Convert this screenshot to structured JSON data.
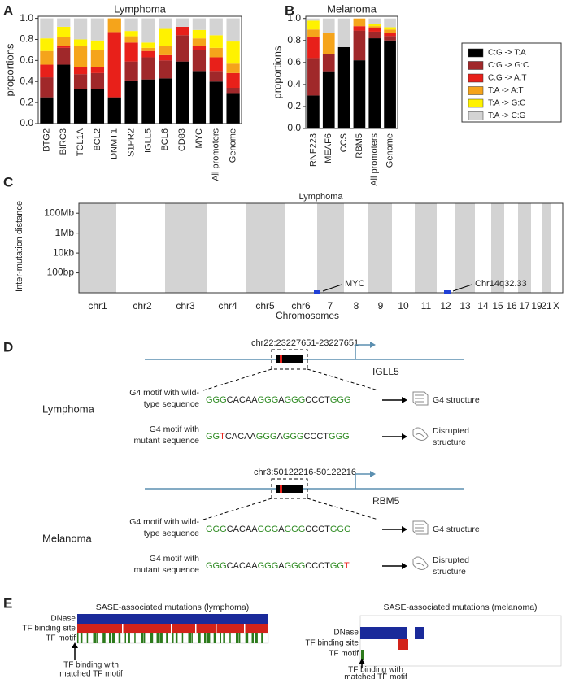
{
  "panel_a": {
    "label": "A",
    "chart_data": {
      "type": "stacked_bar",
      "title": "Lymphoma",
      "y_label": "proportions",
      "categories": [
        "BTG2",
        "BIRC3",
        "TCL1A",
        "BCL2",
        "DNMT1",
        "S1PR2",
        "IGLL5",
        "BCL6",
        "CD83",
        "MYC",
        "All promoters",
        "Genome"
      ],
      "series": [
        {
          "name": "C:G -> T:A",
          "color": "#000000",
          "values": [
            0.25,
            0.56,
            0.33,
            0.33,
            0.25,
            0.41,
            0.42,
            0.43,
            0.59,
            0.5,
            0.4,
            0.29
          ]
        },
        {
          "name": "C:G -> G:C",
          "color": "#a0282a",
          "values": [
            0.19,
            0.16,
            0.14,
            0.15,
            0.0,
            0.18,
            0.21,
            0.17,
            0.25,
            0.2,
            0.1,
            0.05
          ]
        },
        {
          "name": "C:G -> A:T",
          "color": "#e8201a",
          "values": [
            0.12,
            0.02,
            0.07,
            0.06,
            0.62,
            0.18,
            0.06,
            0.05,
            0.08,
            0.04,
            0.13,
            0.14
          ]
        },
        {
          "name": "T:A -> A:T",
          "color": "#f5a41b",
          "values": [
            0.13,
            0.08,
            0.2,
            0.16,
            0.13,
            0.06,
            0.03,
            0.09,
            0.0,
            0.07,
            0.09,
            0.09
          ]
        },
        {
          "name": "T:A -> G:C",
          "color": "#fff200",
          "values": [
            0.12,
            0.1,
            0.06,
            0.09,
            0.0,
            0.05,
            0.05,
            0.16,
            0.0,
            0.08,
            0.12,
            0.21
          ]
        },
        {
          "name": "T:A -> C:G",
          "color": "#d3d3d3",
          "values": [
            0.19,
            0.08,
            0.2,
            0.21,
            0.0,
            0.12,
            0.23,
            0.1,
            0.08,
            0.11,
            0.16,
            0.22
          ]
        }
      ],
      "ylim": [
        0,
        1.02
      ],
      "yticks": [
        {
          "value": 0,
          "label": "0.0"
        },
        {
          "value": 0.2,
          "label": "0.2"
        },
        {
          "value": 0.4,
          "label": "0.4"
        },
        {
          "value": 0.6,
          "label": "0.6"
        },
        {
          "value": 0.8,
          "label": "0.8"
        },
        {
          "value": 1,
          "label": "1.0"
        }
      ]
    }
  },
  "panel_b": {
    "label": "B",
    "chart_data": {
      "type": "stacked_bar",
      "title": "Melanoma",
      "y_label": "proportions",
      "categories": [
        "RNF223",
        "MEAF6",
        "CCS",
        "RBM5",
        "All promoters",
        "Genome"
      ],
      "series": [
        {
          "name": "C:G -> T:A",
          "color": "#000000",
          "values": [
            0.3,
            0.52,
            0.74,
            0.62,
            0.82,
            0.8
          ]
        },
        {
          "name": "C:G -> G:C",
          "color": "#a0282a",
          "values": [
            0.34,
            0.16,
            0.0,
            0.27,
            0.06,
            0.04
          ]
        },
        {
          "name": "C:G -> A:T",
          "color": "#e8201a",
          "values": [
            0.19,
            0.0,
            0.0,
            0.04,
            0.03,
            0.03
          ]
        },
        {
          "name": "T:A -> A:T",
          "color": "#f5a41b",
          "values": [
            0.07,
            0.19,
            0.0,
            0.07,
            0.02,
            0.03
          ]
        },
        {
          "name": "T:A -> G:C",
          "color": "#fff200",
          "values": [
            0.08,
            0.0,
            0.0,
            0.0,
            0.02,
            0.02
          ]
        },
        {
          "name": "T:A -> C:G",
          "color": "#d3d3d3",
          "values": [
            0.02,
            0.13,
            0.26,
            0.0,
            0.05,
            0.08
          ]
        }
      ],
      "ylim": [
        0,
        1.02
      ],
      "yticks": [
        {
          "value": 0,
          "label": "0.0"
        },
        {
          "value": 0.2,
          "label": "0.2"
        },
        {
          "value": 0.4,
          "label": "0.4"
        },
        {
          "value": 0.6,
          "label": "0.6"
        },
        {
          "value": 0.8,
          "label": "0.8"
        },
        {
          "value": 1,
          "label": "1.0"
        }
      ]
    }
  },
  "panel_c": {
    "label": "C",
    "chart_data": {
      "type": "rainfall",
      "title": "Lymphoma",
      "y_label": "Inter-mutation distance",
      "x_label": "Chromosomes",
      "log_y": true,
      "ylim": [
        1,
        1000000000
      ],
      "yticks": [
        {
          "value": 100000000,
          "label": "100Mb"
        },
        {
          "value": 1000000,
          "label": "1Mb"
        },
        {
          "value": 10000,
          "label": "10kb"
        },
        {
          "value": 100,
          "label": "100bp"
        }
      ],
      "categories": [
        "chr1",
        "chr2",
        "chr3",
        "chr4",
        "chr5",
        "chr6",
        "7",
        "8",
        "9",
        "10",
        "11",
        "12",
        "13",
        "14",
        "15",
        "16",
        "17",
        "19",
        "21",
        "X"
      ],
      "annotations": [
        "MYC",
        "Chr14q32.33"
      ]
    }
  },
  "panel_d": {
    "label": "D",
    "lymphoma": {
      "name": "Lymphoma",
      "locus": "chr22:23227651-23227651",
      "gene": "IGLL5",
      "wild": {
        "label": [
          "G4 motif with wild-",
          "type sequence"
        ],
        "result": [
          "G4 structure"
        ],
        "sequence": [
          {
            "text": "GGG",
            "color": "#2e8b22"
          },
          {
            "text": "CACAA",
            "color": "#222222"
          },
          {
            "text": "GGG",
            "color": "#2e8b22"
          },
          {
            "text": "A",
            "color": "#222222"
          },
          {
            "text": "GGG",
            "color": "#2e8b22"
          },
          {
            "text": "CCCT",
            "color": "#222222"
          },
          {
            "text": "GGG",
            "color": "#2e8b22"
          }
        ]
      },
      "mutant": {
        "label": [
          "G4 motif with",
          "mutant sequence"
        ],
        "result": [
          "Disrupted",
          "structure"
        ],
        "sequence": [
          {
            "text": "GG",
            "color": "#2e8b22"
          },
          {
            "text": "T",
            "color": "#e8201a"
          },
          {
            "text": "CACAA",
            "color": "#222222"
          },
          {
            "text": "GGG",
            "color": "#2e8b22"
          },
          {
            "text": "A",
            "color": "#222222"
          },
          {
            "text": "GGG",
            "color": "#2e8b22"
          },
          {
            "text": "CCCT",
            "color": "#222222"
          },
          {
            "text": "GGG",
            "color": "#2e8b22"
          }
        ]
      }
    },
    "melanoma": {
      "name": "Melanoma",
      "locus": "chr3:50122216-50122216",
      "gene": "RBM5",
      "wild": {
        "label": [
          "G4 motif with wild-",
          "type sequence"
        ],
        "result": [
          "G4 structure"
        ],
        "sequence": [
          {
            "text": "GGG",
            "color": "#2e8b22"
          },
          {
            "text": "CACAA",
            "color": "#222222"
          },
          {
            "text": "GGG",
            "color": "#2e8b22"
          },
          {
            "text": "A",
            "color": "#222222"
          },
          {
            "text": "GGG",
            "color": "#2e8b22"
          },
          {
            "text": "CCCT",
            "color": "#222222"
          },
          {
            "text": "GGG",
            "color": "#2e8b22"
          }
        ]
      },
      "mutant": {
        "label": [
          "G4 motif with",
          "mutant sequence"
        ],
        "result": [
          "Disrupted",
          "structure"
        ],
        "sequence": [
          {
            "text": "GGG",
            "color": "#2e8b22"
          },
          {
            "text": "CACAA",
            "color": "#222222"
          },
          {
            "text": "GGG",
            "color": "#2e8b22"
          },
          {
            "text": "A",
            "color": "#222222"
          },
          {
            "text": "GGG",
            "color": "#2e8b22"
          },
          {
            "text": "CCCT",
            "color": "#222222"
          },
          {
            "text": "GG",
            "color": "#2e8b22"
          },
          {
            "text": "T",
            "color": "#e8201a"
          }
        ]
      }
    }
  },
  "panel_e": {
    "label": "E",
    "lymphoma": {
      "title": "SASE-associated mutations (lymphoma)",
      "rows": [
        "DNase",
        "TF binding site",
        "TF motif"
      ],
      "note": [
        "TF binding with",
        "matched TF motif"
      ]
    },
    "melanoma": {
      "title": "SASE-associated mutations (melanoma)",
      "rows": [
        "DNase",
        "TF binding site",
        "TF motif"
      ],
      "note": [
        "TF binding with",
        "matched TF motif"
      ]
    }
  }
}
